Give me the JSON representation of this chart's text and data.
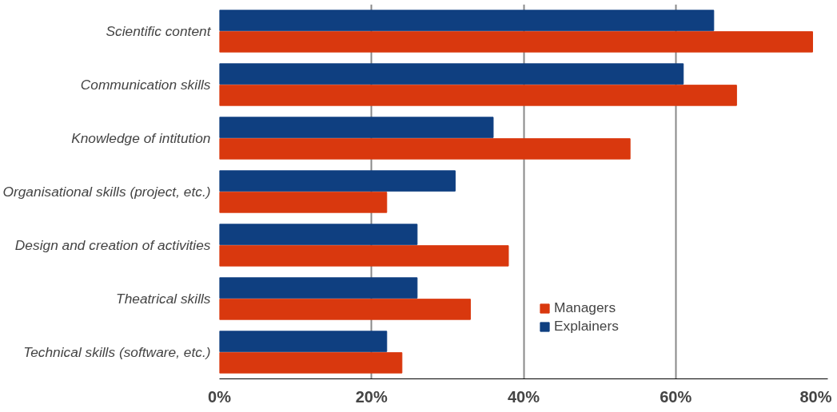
{
  "chart_data": {
    "type": "bar",
    "orientation": "horizontal",
    "categories": [
      "Scientific content",
      "Communication skills",
      "Knowledge of intitution",
      "Organisational skills (project, etc.)",
      "Design and creation of activities",
      "Theatrical skills",
      "Technical skills (software, etc.)"
    ],
    "series": [
      {
        "name": "Managers",
        "color": "#d9380e",
        "values": [
          78,
          68,
          54,
          22,
          38,
          33,
          24
        ]
      },
      {
        "name": "Explainers",
        "color": "#0f3f80",
        "values": [
          65,
          61,
          36,
          31,
          26,
          26,
          22
        ]
      }
    ],
    "xlim": [
      0,
      80
    ],
    "xticks": [
      {
        "value": 0,
        "label": "0%"
      },
      {
        "value": 20,
        "label": "20%"
      },
      {
        "value": 40,
        "label": "40%"
      },
      {
        "value": 60,
        "label": "60%"
      },
      {
        "value": 80,
        "label": "80%"
      }
    ],
    "grid": "x",
    "legend": "bottom"
  }
}
